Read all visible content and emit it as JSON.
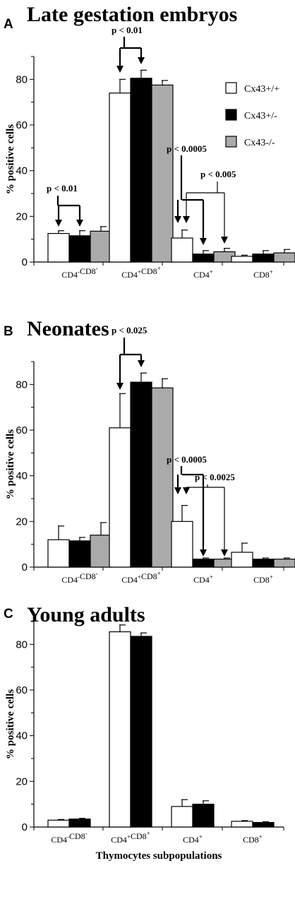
{
  "x_axis_label": "Thymocytes subpopulations",
  "chart_data": [
    {
      "type": "bar",
      "panel": "A",
      "title": "Late gestation embryos",
      "ylabel": "% positive cells",
      "ylim": [
        0,
        90
      ],
      "yticks": [
        0,
        20,
        40,
        60,
        80
      ],
      "categories": [
        "CD4-CD8-",
        "CD4+CD8+",
        "CD4+",
        "CD8+"
      ],
      "series": [
        {
          "name": "Cx43+/+",
          "color": "#ffffff",
          "values": [
            12.5,
            74,
            10.5,
            2.5
          ],
          "errors": [
            1.2,
            6,
            3.5,
            0.5
          ]
        },
        {
          "name": "Cx43+/-",
          "color": "#000000",
          "values": [
            11.5,
            80.5,
            3.5,
            3.5
          ],
          "errors": [
            2.2,
            3.5,
            1.5,
            1.5
          ]
        },
        {
          "name": "Cx43-/-",
          "color": "#aaaaaa",
          "values": [
            13.5,
            77.5,
            4.5,
            4
          ],
          "errors": [
            2,
            2,
            1.5,
            1.5
          ]
        }
      ],
      "legend": [
        "Cx43+/+",
        "Cx43+/-",
        "Cx43-/-"
      ],
      "legend_position": "top-right",
      "annotations": [
        "p < 0.01",
        "p < 0.01",
        "p < 0.0005",
        "p < 0.005"
      ]
    },
    {
      "type": "bar",
      "panel": "B",
      "title": "Neonates",
      "ylabel": "% positive cells",
      "ylim": [
        0,
        90
      ],
      "yticks": [
        0,
        20,
        40,
        60,
        80
      ],
      "categories": [
        "CD4-CD8-",
        "CD4+CD8+",
        "CD4+",
        "CD8+"
      ],
      "series": [
        {
          "name": "Cx43+/+",
          "color": "#ffffff",
          "values": [
            12,
            61,
            20,
            6.5
          ],
          "errors": [
            6,
            15,
            7,
            4
          ]
        },
        {
          "name": "Cx43+/-",
          "color": "#000000",
          "values": [
            11.5,
            81,
            3.5,
            3.5
          ],
          "errors": [
            1.5,
            4,
            0.5,
            0.5
          ]
        },
        {
          "name": "Cx43-/-",
          "color": "#aaaaaa",
          "values": [
            14,
            78.5,
            3.5,
            3.5
          ],
          "errors": [
            5.5,
            4,
            0.5,
            0.5
          ]
        }
      ],
      "annotations": [
        "p < 0.025",
        "p < 0.0005",
        "p < 0.0025"
      ]
    },
    {
      "type": "bar",
      "panel": "C",
      "title": "Young adults",
      "ylabel": "% positive cells",
      "ylim": [
        0,
        90
      ],
      "yticks": [
        0,
        20,
        40,
        60,
        80
      ],
      "categories": [
        "CD4-CD8-",
        "CD4+CD8+",
        "CD4+",
        "CD8+"
      ],
      "series": [
        {
          "name": "Cx43+/+",
          "color": "#ffffff",
          "values": [
            3,
            85.5,
            9,
            2.5
          ],
          "errors": [
            0.3,
            3,
            3,
            0.3
          ]
        },
        {
          "name": "Cx43+/-",
          "color": "#000000",
          "values": [
            3.5,
            83.5,
            10,
            2
          ],
          "errors": [
            0.3,
            1.5,
            1.5,
            0.3
          ]
        }
      ]
    }
  ]
}
